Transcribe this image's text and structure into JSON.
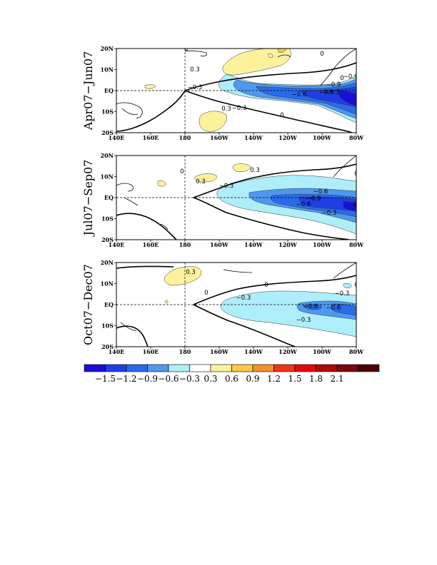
{
  "chart_data": {
    "type": "contour-map",
    "cmap": [
      "#1a0fd6",
      "#1f3fe6",
      "#2a6bec",
      "#4f98ef",
      "#aeeefb",
      "#ffffff",
      "#fdf29c",
      "#f8c94a",
      "#f3912f",
      "#ee3616",
      "#e00b0b",
      "#b00a0a",
      "#7d0808",
      "#4a0303"
    ],
    "colorbar": {
      "ticks": [
        "−1.5",
        "−1.2",
        "−0.9",
        "−0.6",
        "−0.3",
        "0.3",
        "0.6",
        "0.9",
        "1.2",
        "1.5",
        "1.8",
        "2.1"
      ]
    },
    "axes": {
      "lon_ticks": [
        "140E",
        "160E",
        "180",
        "160W",
        "140W",
        "120W",
        "100W",
        "80W"
      ],
      "lat_ticks": [
        "20N",
        "10N",
        "EQ",
        "10S",
        "20S"
      ]
    },
    "panels": [
      {
        "period": "Apr07−Jun07",
        "contour_labels": [
          "0",
          "0",
          "0",
          "0.3",
          "0.3",
          "−0.3",
          "−0.3",
          "−0.3",
          "−0.6",
          "−0.6",
          "−0.9",
          "−0.9",
          "0",
          "0"
        ]
      },
      {
        "period": "Jul07−Sep07",
        "contour_labels": [
          "0",
          "0",
          "0.3",
          "0.3",
          "−0.3",
          "−0.6",
          "−0.6",
          "−0.9",
          "−0.3",
          "0"
        ]
      },
      {
        "period": "Oct07−Dec07",
        "contour_labels": [
          "0",
          "0",
          "0.3",
          "−0.3",
          "−0.3",
          "−0.6",
          "−0.6",
          "−0.3",
          "0"
        ]
      }
    ]
  }
}
